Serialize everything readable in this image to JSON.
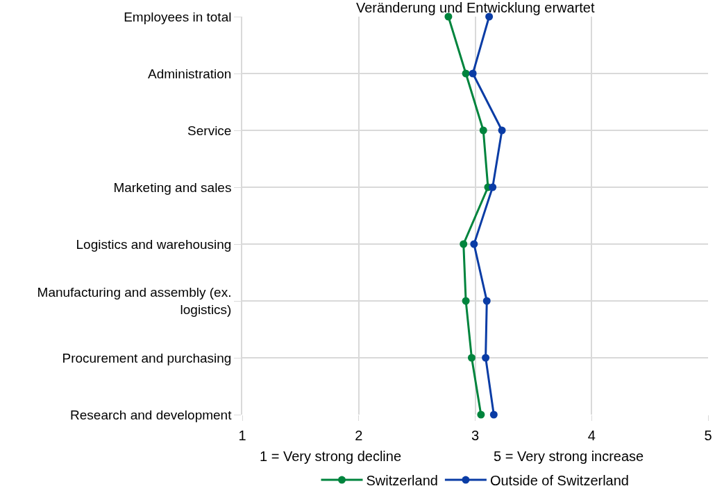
{
  "chart_data": {
    "type": "line",
    "orientation": "horizontal",
    "title": "Veränderung und Entwicklung erwartet",
    "categories": [
      "Employees in total",
      "Administration",
      "Service",
      "Marketing and sales",
      "Logistics and warehousing",
      "Manufacturing and assembly (ex. logistics)",
      "Procurement and purchasing",
      "Research and development"
    ],
    "series": [
      {
        "name": "Switzerland",
        "color": "#00843d",
        "values": [
          2.77,
          2.92,
          3.07,
          3.11,
          2.9,
          2.92,
          2.97,
          3.05
        ]
      },
      {
        "name": "Outside of Switzerland",
        "color": "#0a3ca5",
        "values": [
          3.12,
          2.98,
          3.23,
          3.15,
          2.99,
          3.1,
          3.09,
          3.16
        ]
      }
    ],
    "xlim": [
      1,
      5
    ],
    "xticks": [
      1,
      2,
      3,
      4,
      5
    ],
    "annotations": [
      "1 = Very strong decline",
      "5 = Very strong increase"
    ],
    "grid": true,
    "legend": "bottom",
    "marker": "circle",
    "line_style": "solid"
  }
}
